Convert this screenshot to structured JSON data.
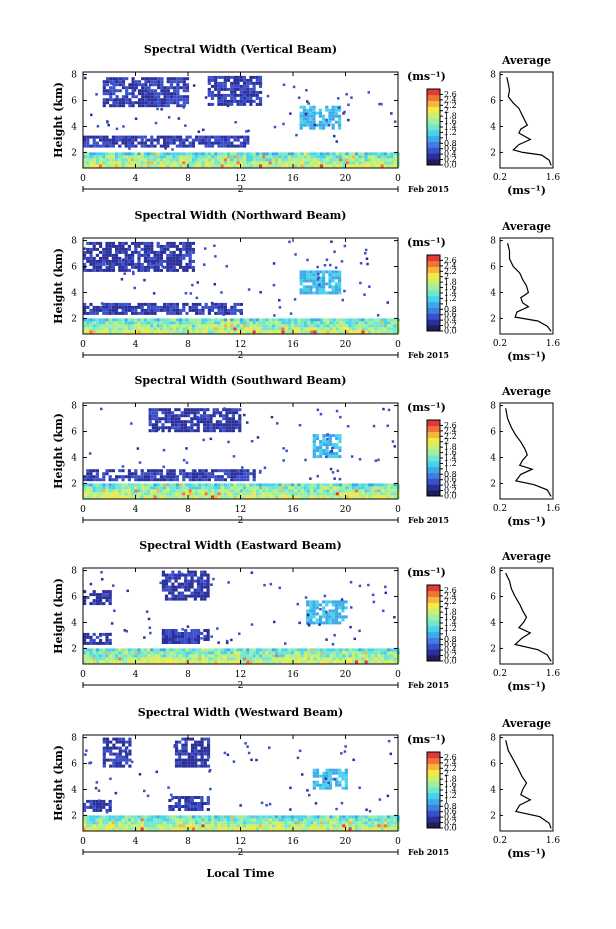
{
  "figure": {
    "xlabel": "Local Time",
    "date_label": "Feb 2015",
    "day_label": "2",
    "unit_label": "(ms⁻¹)",
    "average_title": "Average",
    "average_xlabel": "(ms⁻¹)"
  },
  "colors": {
    "colormap": [
      "#1e1e5a",
      "#2a2f9a",
      "#3a4fc9",
      "#3f7ddf",
      "#3fa9e8",
      "#46d2ec",
      "#6fe7cf",
      "#9ef0a0",
      "#cdf06a",
      "#f2e84a",
      "#f6b63a",
      "#f2733a",
      "#e03a36"
    ],
    "profile_line": "#000000",
    "axis": "#000000"
  },
  "chart_data": [
    {
      "type": "heatmap",
      "title": "Spectral Width (Vertical Beam)",
      "ylabel": "Height (km)",
      "x_ticks": [
        "0",
        "4",
        "8",
        "12",
        "16",
        "20",
        "0"
      ],
      "xlim": [
        0,
        24
      ],
      "y_ticks": [
        "2",
        "4",
        "6",
        "8"
      ],
      "ylim": [
        0.8,
        8.2
      ],
      "colorbar_ticks": [
        "2.6",
        "2.4",
        "2.2",
        "2",
        "1.8",
        "1.6",
        "1.4",
        "1.2",
        "1",
        "0.8",
        "0.6",
        "0.4",
        "0.2",
        "0.0"
      ],
      "colorbar_range": [
        0,
        2.8
      ],
      "boundary_layer_top_km": 2.0,
      "features": [
        {
          "t": [
            1.5,
            8.0
          ],
          "h": [
            5.7,
            7.8
          ],
          "level": 0.35
        },
        {
          "t": [
            9.5,
            13.5
          ],
          "h": [
            5.7,
            7.9
          ],
          "level": 0.35
        },
        {
          "t": [
            16.5,
            19.5
          ],
          "h": [
            3.9,
            5.6
          ],
          "level": 1.0
        },
        {
          "t": [
            0.0,
            12.5
          ],
          "h": [
            2.4,
            3.3
          ],
          "level": 0.35
        }
      ],
      "average_profile": {
        "xlim": [
          0.2,
          1.6
        ],
        "x_ticks": [
          "0.2",
          "1.6"
        ],
        "ylim": [
          0.8,
          8.2
        ],
        "y_ticks": [
          "2",
          "4",
          "6",
          "8"
        ],
        "points": [
          [
            0.38,
            7.8
          ],
          [
            0.42,
            7.3
          ],
          [
            0.45,
            6.8
          ],
          [
            0.42,
            6.3
          ],
          [
            0.55,
            5.8
          ],
          [
            0.7,
            5.4
          ],
          [
            0.78,
            4.9
          ],
          [
            0.85,
            4.5
          ],
          [
            0.92,
            4.1
          ],
          [
            0.75,
            3.8
          ],
          [
            0.7,
            3.5
          ],
          [
            0.88,
            3.2
          ],
          [
            1.0,
            3.0
          ],
          [
            0.7,
            2.6
          ],
          [
            0.55,
            2.2
          ],
          [
            0.8,
            2.0
          ],
          [
            1.3,
            1.8
          ],
          [
            1.5,
            1.4
          ],
          [
            1.55,
            1.0
          ]
        ]
      }
    },
    {
      "type": "heatmap",
      "title": "Spectral Width (Northward Beam)",
      "ylabel": "Height (km)",
      "x_ticks": [
        "0",
        "4",
        "8",
        "12",
        "16",
        "20",
        "0"
      ],
      "xlim": [
        0,
        24
      ],
      "y_ticks": [
        "2",
        "4",
        "6",
        "8"
      ],
      "ylim": [
        0.8,
        8.2
      ],
      "colorbar_ticks": [
        "2.6",
        "2.4",
        "2.2",
        "2",
        "1.8",
        "1.6",
        "1.4",
        "1.2",
        "1",
        "0.8",
        "0.6",
        "0.4",
        "0.2",
        "0.0"
      ],
      "colorbar_range": [
        0,
        2.8
      ],
      "boundary_layer_top_km": 2.0,
      "features": [
        {
          "t": [
            0.0,
            8.5
          ],
          "h": [
            5.6,
            7.9
          ],
          "level": 0.3
        },
        {
          "t": [
            16.5,
            19.5
          ],
          "h": [
            4.0,
            5.7
          ],
          "level": 1.0
        },
        {
          "t": [
            0.0,
            12.0
          ],
          "h": [
            2.3,
            3.2
          ],
          "level": 0.35
        }
      ],
      "average_profile": {
        "xlim": [
          0.2,
          1.6
        ],
        "x_ticks": [
          "0.2",
          "1.6"
        ],
        "ylim": [
          0.8,
          8.2
        ],
        "y_ticks": [
          "2",
          "4",
          "6",
          "8"
        ],
        "points": [
          [
            0.4,
            7.8
          ],
          [
            0.45,
            7.2
          ],
          [
            0.45,
            6.6
          ],
          [
            0.55,
            6.0
          ],
          [
            0.72,
            5.5
          ],
          [
            0.8,
            5.0
          ],
          [
            0.9,
            4.5
          ],
          [
            0.95,
            4.0
          ],
          [
            0.75,
            3.6
          ],
          [
            0.8,
            3.2
          ],
          [
            0.95,
            2.9
          ],
          [
            0.65,
            2.5
          ],
          [
            0.6,
            2.1
          ],
          [
            1.2,
            1.8
          ],
          [
            1.45,
            1.4
          ],
          [
            1.55,
            1.0
          ]
        ]
      }
    },
    {
      "type": "heatmap",
      "title": "Spectral Width (Southward Beam)",
      "ylabel": "Height (km)",
      "x_ticks": [
        "0",
        "4",
        "8",
        "12",
        "16",
        "20",
        "0"
      ],
      "xlim": [
        0,
        24
      ],
      "y_ticks": [
        "2",
        "4",
        "6",
        "8"
      ],
      "ylim": [
        0.8,
        8.2
      ],
      "colorbar_ticks": [
        "2.6",
        "2.4",
        "2.2",
        "2",
        "1.8",
        "1.6",
        "1.4",
        "1.2",
        "1",
        "0.8",
        "0.6",
        "0.4",
        "0.2",
        "0.0"
      ],
      "colorbar_range": [
        0,
        2.8
      ],
      "boundary_layer_top_km": 2.0,
      "features": [
        {
          "t": [
            17.5,
            19.5
          ],
          "h": [
            4.0,
            5.8
          ],
          "level": 1.0
        },
        {
          "t": [
            0.0,
            13.0
          ],
          "h": [
            2.4,
            3.1
          ],
          "level": 0.35
        },
        {
          "t": [
            5.0,
            12.0
          ],
          "h": [
            6.0,
            7.8
          ],
          "level": 0.3
        }
      ],
      "average_profile": {
        "xlim": [
          0.2,
          1.6
        ],
        "x_ticks": [
          "0.2",
          "1.6"
        ],
        "ylim": [
          0.8,
          8.2
        ],
        "y_ticks": [
          "2",
          "4",
          "6",
          "8"
        ],
        "points": [
          [
            0.35,
            7.8
          ],
          [
            0.4,
            7.0
          ],
          [
            0.5,
            6.3
          ],
          [
            0.62,
            5.7
          ],
          [
            0.75,
            5.2
          ],
          [
            0.85,
            4.7
          ],
          [
            0.92,
            4.2
          ],
          [
            0.8,
            3.8
          ],
          [
            0.72,
            3.4
          ],
          [
            1.05,
            3.1
          ],
          [
            0.75,
            2.7
          ],
          [
            0.62,
            2.2
          ],
          [
            1.1,
            1.9
          ],
          [
            1.45,
            1.5
          ],
          [
            1.55,
            1.0
          ]
        ]
      }
    },
    {
      "type": "heatmap",
      "title": "Spectral Width (Eastward Beam)",
      "ylabel": "Height (km)",
      "x_ticks": [
        "0",
        "4",
        "8",
        "12",
        "16",
        "20",
        "0"
      ],
      "xlim": [
        0,
        24
      ],
      "y_ticks": [
        "2",
        "4",
        "6",
        "8"
      ],
      "ylim": [
        0.8,
        8.2
      ],
      "colorbar_ticks": [
        "2.6",
        "2.4",
        "2.2",
        "2",
        "1.8",
        "1.6",
        "1.4",
        "1.2",
        "1",
        "0.8",
        "0.6",
        "0.4",
        "0.2",
        "0.0"
      ],
      "colorbar_range": [
        0,
        2.8
      ],
      "boundary_layer_top_km": 2.0,
      "features": [
        {
          "t": [
            6.0,
            9.5
          ],
          "h": [
            5.8,
            8.0
          ],
          "level": 0.3
        },
        {
          "t": [
            0.0,
            2.0
          ],
          "h": [
            5.5,
            6.5
          ],
          "level": 0.3
        },
        {
          "t": [
            17.0,
            20.0
          ],
          "h": [
            3.9,
            5.7
          ],
          "level": 1.0
        },
        {
          "t": [
            6.0,
            9.5
          ],
          "h": [
            2.4,
            3.5
          ],
          "level": 0.35
        },
        {
          "t": [
            0.0,
            2.0
          ],
          "h": [
            2.5,
            3.2
          ],
          "level": 0.3
        }
      ],
      "average_profile": {
        "xlim": [
          0.2,
          1.6
        ],
        "x_ticks": [
          "0.2",
          "1.6"
        ],
        "ylim": [
          0.8,
          8.2
        ],
        "y_ticks": [
          "2",
          "4",
          "6",
          "8"
        ],
        "points": [
          [
            0.35,
            7.8
          ],
          [
            0.45,
            7.2
          ],
          [
            0.5,
            6.6
          ],
          [
            0.6,
            6.0
          ],
          [
            0.72,
            5.4
          ],
          [
            0.8,
            4.9
          ],
          [
            0.9,
            4.4
          ],
          [
            0.82,
            4.0
          ],
          [
            0.7,
            3.6
          ],
          [
            1.0,
            3.2
          ],
          [
            0.78,
            2.8
          ],
          [
            0.6,
            2.3
          ],
          [
            1.2,
            1.9
          ],
          [
            1.45,
            1.5
          ],
          [
            1.55,
            1.0
          ]
        ]
      }
    },
    {
      "type": "heatmap",
      "title": "Spectral Width (Westward Beam)",
      "ylabel": "Height (km)",
      "x_ticks": [
        "0",
        "4",
        "8",
        "12",
        "16",
        "20",
        "0"
      ],
      "xlim": [
        0,
        24
      ],
      "y_ticks": [
        "2",
        "4",
        "6",
        "8"
      ],
      "ylim": [
        0.8,
        8.2
      ],
      "colorbar_ticks": [
        "2.6",
        "2.4",
        "2.2",
        "2",
        "1.8",
        "1.6",
        "1.4",
        "1.2",
        "1",
        "0.8",
        "0.6",
        "0.4",
        "0.2",
        "0.0"
      ],
      "colorbar_range": [
        0,
        2.8
      ],
      "boundary_layer_top_km": 2.0,
      "features": [
        {
          "t": [
            1.5,
            3.5
          ],
          "h": [
            5.8,
            8.0
          ],
          "level": 0.3
        },
        {
          "t": [
            7.0,
            9.5
          ],
          "h": [
            5.8,
            8.0
          ],
          "level": 0.3
        },
        {
          "t": [
            17.5,
            20.0
          ],
          "h": [
            4.0,
            5.6
          ],
          "level": 1.0
        },
        {
          "t": [
            6.5,
            9.5
          ],
          "h": [
            2.4,
            3.5
          ],
          "level": 0.35
        },
        {
          "t": [
            0.0,
            2.0
          ],
          "h": [
            2.5,
            3.2
          ],
          "level": 0.3
        }
      ],
      "average_profile": {
        "xlim": [
          0.2,
          1.6
        ],
        "x_ticks": [
          "0.2",
          "1.6"
        ],
        "ylim": [
          0.8,
          8.2
        ],
        "y_ticks": [
          "2",
          "4",
          "6",
          "8"
        ],
        "points": [
          [
            0.35,
            7.8
          ],
          [
            0.42,
            7.0
          ],
          [
            0.55,
            6.3
          ],
          [
            0.68,
            5.6
          ],
          [
            0.78,
            5.0
          ],
          [
            0.9,
            4.5
          ],
          [
            0.8,
            4.0
          ],
          [
            0.75,
            3.6
          ],
          [
            1.0,
            3.2
          ],
          [
            0.72,
            2.8
          ],
          [
            0.62,
            2.3
          ],
          [
            1.25,
            1.9
          ],
          [
            1.5,
            1.4
          ],
          [
            1.55,
            1.0
          ]
        ]
      }
    }
  ]
}
